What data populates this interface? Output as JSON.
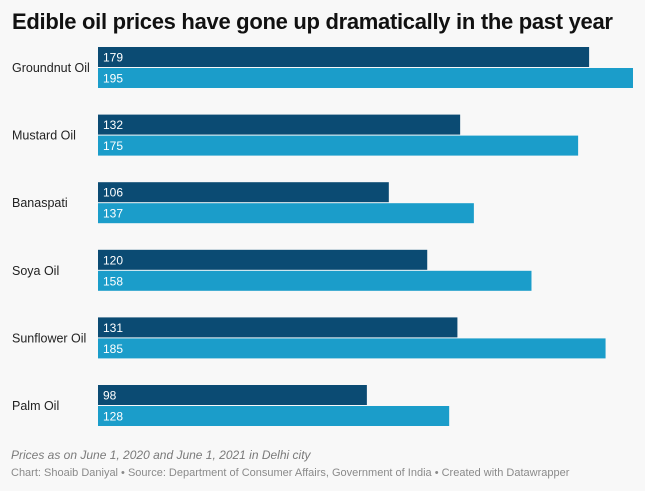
{
  "chart_data": {
    "type": "bar",
    "orientation": "horizontal",
    "title": "Edible oil prices have gone up dramatically in the past year",
    "categories": [
      "Groundnut Oil",
      "Mustard Oil",
      "Banaspati",
      "Soya Oil",
      "Sunflower Oil",
      "Palm Oil"
    ],
    "series": [
      {
        "name": "June 1, 2020",
        "color": "#0b4b73",
        "values": [
          179,
          132,
          106,
          120,
          131,
          98
        ]
      },
      {
        "name": "June 1, 2021",
        "color": "#1b9dca",
        "values": [
          195,
          175,
          137,
          158,
          185,
          128
        ]
      }
    ],
    "xlim": [
      0,
      195
    ],
    "grid": false,
    "notes": "Prices as on June 1, 2020 and June 1, 2021 in Delhi city",
    "footer": "Chart: Shoaib Daniyal • Source: Department of Consumer Affairs, Government of India • Created with Datawrapper"
  }
}
